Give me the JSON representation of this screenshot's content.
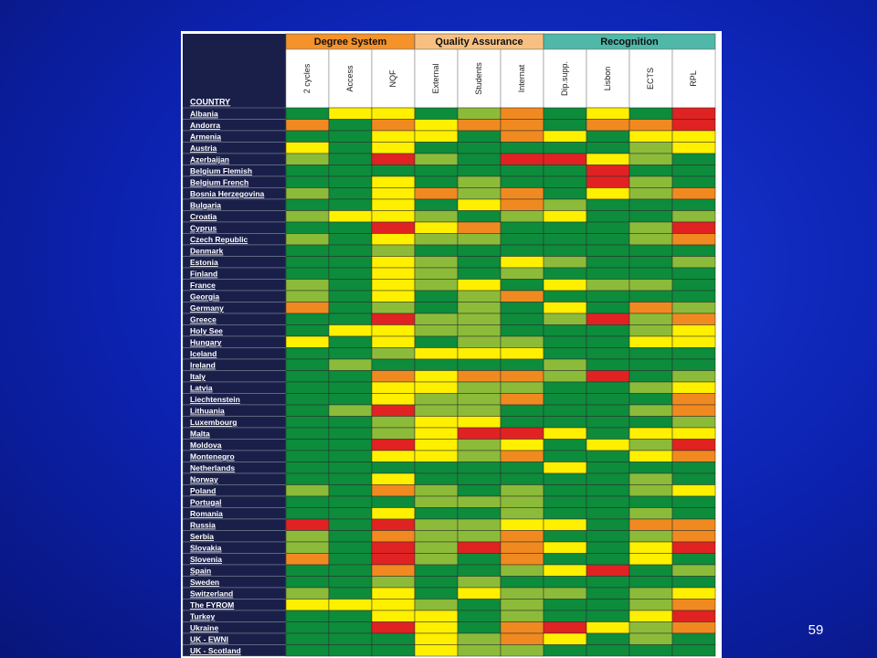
{
  "table": {
    "country_header": "COUNTRY",
    "groups": [
      {
        "label": "Degree System",
        "span": 3,
        "color": "#f5922a"
      },
      {
        "label": "Quality Assurance",
        "span": 3,
        "color": "#f8c080"
      },
      {
        "label": "Recognition",
        "span": 4,
        "color": "#4fb8a8"
      }
    ],
    "columns": [
      "2 cycles",
      "Access",
      "NQF",
      "External",
      "Students",
      "Internat",
      "Dip.supp.",
      "Lisbon",
      "ECTS",
      "RPL"
    ],
    "palette": {
      "G": "#0d8c3c",
      "L": "#8cbb3a",
      "Y": "#fff000",
      "O": "#f08a20",
      "R": "#e02222"
    },
    "rows": [
      {
        "country": "Albania",
        "cells": "GYYGLOGYGR"
      },
      {
        "country": "Andorra",
        "cells": "OGOYOOGOOR"
      },
      {
        "country": "Armenia",
        "cells": "GGYYGOYGYY"
      },
      {
        "country": "Austria",
        "cells": "YGYGGGGGLY"
      },
      {
        "country": "Azerbaijan",
        "cells": "LGRLGRRYLG"
      },
      {
        "country": "Belgium Flemish",
        "cells": "GGGGGGGRGG"
      },
      {
        "country": "Belgium French",
        "cells": "GGYGLGGRLG"
      },
      {
        "country": "Bosnia Herzegovina",
        "cells": "LGYOLOGYLO"
      },
      {
        "country": "Bulgaria",
        "cells": "GGYGYOLGGG"
      },
      {
        "country": "Croatia",
        "cells": "LYYLGLYGGL"
      },
      {
        "country": "Cyprus",
        "cells": "GGRYOGGGLR"
      },
      {
        "country": "Czech Republic",
        "cells": "LGYLLGGGLO"
      },
      {
        "country": "Denmark",
        "cells": "GGLGGGGGGG"
      },
      {
        "country": "Estonia",
        "cells": "GGYLGYLGGL"
      },
      {
        "country": "Finland",
        "cells": "GGYLGLGGGG"
      },
      {
        "country": "France",
        "cells": "LGYLYGYLLG"
      },
      {
        "country": "Georgia",
        "cells": "LGYGLOGGGG"
      },
      {
        "country": "Germany",
        "cells": "OGLGLGYGOL"
      },
      {
        "country": "Greece",
        "cells": "GGRLLGLRLO"
      },
      {
        "country": "Holy See",
        "cells": "GYYLLGGGLY"
      },
      {
        "country": "Hungary",
        "cells": "YGYGLLGGYY"
      },
      {
        "country": "Iceland",
        "cells": "GGLYYYGGGG"
      },
      {
        "country": "Ireland",
        "cells": "GLGGGGLGGG"
      },
      {
        "country": "Italy",
        "cells": "GGOYOOLRGL"
      },
      {
        "country": "Latvia",
        "cells": "GGYYLLGGLY"
      },
      {
        "country": "Liechtenstein",
        "cells": "GGYLLOGGGO"
      },
      {
        "country": "Lithuania",
        "cells": "GLRLLGGGLO"
      },
      {
        "country": "Luxembourg",
        "cells": "GGLYYGGGGL"
      },
      {
        "country": "Malta",
        "cells": "GGLYRRYGYY"
      },
      {
        "country": "Moldova",
        "cells": "GGRYLYGYLR"
      },
      {
        "country": "Montenegro",
        "cells": "GGYYLOGGYO"
      },
      {
        "country": "Netherlands",
        "cells": "GGGGGGYGGG"
      },
      {
        "country": "Norway",
        "cells": "GGYGGGGGLG"
      },
      {
        "country": "Poland",
        "cells": "LGOLGLGGLY"
      },
      {
        "country": "Portugal",
        "cells": "GGGLLLGGGG"
      },
      {
        "country": "Romania",
        "cells": "GGYGGLGGLG"
      },
      {
        "country": "Russia",
        "cells": "RGRLLYYGOO"
      },
      {
        "country": "Serbia",
        "cells": "LGOLLOGGLO"
      },
      {
        "country": "Slovakia",
        "cells": "LGRLROYGYR"
      },
      {
        "country": "Slovenia",
        "cells": "OGRLGOGGYG"
      },
      {
        "country": "Spain",
        "cells": "GGOGGLYRGL"
      },
      {
        "country": "Sweden",
        "cells": "GGLGLGGGGG"
      },
      {
        "country": "Switzerland",
        "cells": "LGYGYLLGLY"
      },
      {
        "country": "The FYROM",
        "cells": "YYYLGLGGLO"
      },
      {
        "country": "Turkey",
        "cells": "GGYYGLGGYR"
      },
      {
        "country": "Ukraine",
        "cells": "GGRYGORYLO"
      },
      {
        "country": "UK - EWNI",
        "cells": "GGGYLOYGLG"
      },
      {
        "country": "UK - Scotland",
        "cells": "GGGYLLGGGG"
      }
    ]
  },
  "page_number": "59"
}
